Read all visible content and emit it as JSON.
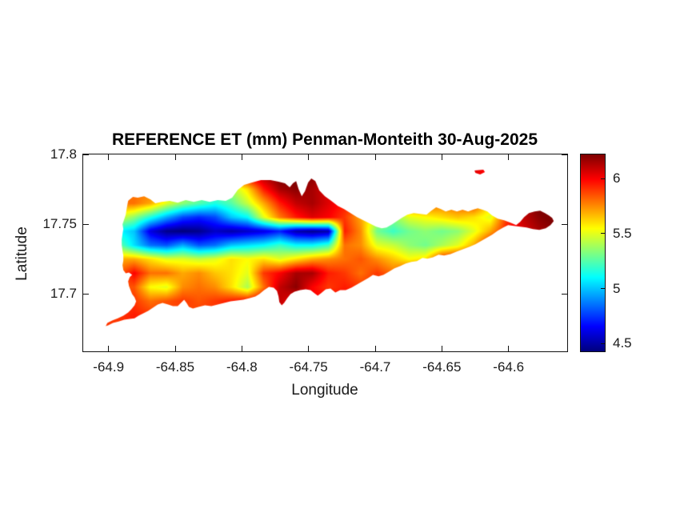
{
  "figure": {
    "background": "#ffffff"
  },
  "chart_data": {
    "type": "heatmap",
    "title": "REFERENCE ET (mm) Penman-Monteith 30-Aug-2025",
    "xlabel": "Longitude",
    "ylabel": "Latitude",
    "xlim": [
      -64.919,
      -64.556
    ],
    "ylim": [
      17.659,
      17.8
    ],
    "xticks": [
      -64.9,
      -64.85,
      -64.8,
      -64.75,
      -64.7,
      -64.65,
      -64.6
    ],
    "xtick_labels": [
      "-64.9",
      "-64.85",
      "-64.8",
      "-64.75",
      "-64.7",
      "-64.65",
      "-64.6"
    ],
    "yticks": [
      17.7,
      17.75,
      17.8
    ],
    "ytick_labels": [
      "17.7",
      "17.75",
      "17.8"
    ],
    "colormap": "jet",
    "color_limits": [
      4.43,
      6.22
    ],
    "colorbar_ticks": [
      4.5,
      5,
      5.5,
      6
    ],
    "colorbar_tick_labels": [
      "4.5",
      "5",
      "5.5",
      "6"
    ],
    "grid": {
      "lon_start": -64.905,
      "lon_step": 0.01214,
      "ncols": 29,
      "lat_start": 17.795,
      "lat_step": -0.01,
      "nrows": 13,
      "values": [
        [
          5.8,
          5.8,
          5.8,
          5.85,
          5.85,
          5.9,
          5.9,
          5.9,
          5.95,
          6.0,
          6.15,
          6.2,
          6.25,
          6.2,
          6.15,
          6.1,
          6.05,
          6.0,
          6.0,
          6.0,
          5.95,
          6.0,
          6.0,
          6.05,
          6.0,
          6.0,
          6.1,
          6.2,
          6.25
        ],
        [
          5.8,
          5.8,
          5.8,
          5.85,
          5.85,
          5.85,
          5.9,
          5.9,
          5.95,
          6.05,
          6.15,
          6.25,
          6.25,
          6.2,
          6.15,
          6.05,
          6.0,
          5.95,
          5.95,
          6.0,
          5.95,
          5.95,
          6.0,
          6.05,
          5.95,
          6.0,
          6.1,
          6.2,
          6.3
        ],
        [
          5.8,
          5.8,
          5.8,
          5.8,
          5.6,
          5.45,
          5.35,
          5.3,
          5.4,
          5.6,
          5.95,
          6.15,
          6.2,
          6.15,
          6.05,
          6.0,
          5.95,
          5.9,
          5.9,
          5.95,
          5.9,
          5.9,
          5.95,
          5.95,
          5.85,
          5.95,
          6.1,
          6.2,
          6.3
        ],
        [
          5.8,
          5.8,
          5.8,
          5.7,
          5.5,
          5.35,
          5.25,
          5.15,
          5.25,
          5.45,
          5.7,
          5.95,
          6.1,
          6.15,
          6.05,
          5.95,
          5.85,
          5.8,
          5.8,
          5.85,
          5.85,
          5.8,
          5.85,
          5.9,
          5.6,
          5.9,
          6.1,
          6.25,
          6.3
        ],
        [
          5.6,
          5.5,
          5.35,
          5.15,
          4.95,
          4.78,
          4.72,
          4.78,
          5.0,
          5.1,
          5.5,
          5.78,
          5.95,
          6.05,
          6.0,
          5.9,
          5.7,
          5.45,
          5.35,
          5.5,
          5.55,
          5.6,
          5.65,
          5.6,
          5.5,
          5.9,
          6.1,
          6.2,
          6.25
        ],
        [
          5.2,
          5.1,
          5.0,
          4.6,
          4.45,
          4.42,
          4.45,
          4.55,
          4.5,
          4.55,
          4.6,
          4.7,
          4.5,
          4.45,
          4.5,
          5.95,
          5.75,
          5.3,
          5.2,
          5.3,
          5.35,
          5.3,
          5.35,
          5.5,
          5.7,
          5.95,
          6.05,
          6.15,
          6.2
        ],
        [
          5.5,
          5.3,
          5.05,
          4.85,
          4.8,
          4.95,
          4.8,
          4.85,
          5.0,
          5.05,
          5.1,
          5.2,
          5.1,
          5.1,
          5.2,
          5.8,
          5.75,
          5.5,
          5.45,
          5.35,
          5.3,
          5.4,
          5.5,
          5.7,
          6.0,
          6.0,
          6.15,
          6.2,
          6.2
        ],
        [
          5.7,
          5.7,
          5.7,
          5.6,
          5.5,
          5.5,
          5.45,
          5.5,
          5.6,
          5.55,
          5.6,
          5.5,
          5.6,
          5.7,
          5.75,
          5.8,
          5.85,
          5.75,
          5.65,
          5.55,
          5.6,
          5.95,
          6.0,
          6.05,
          6.0,
          6.1,
          6.1,
          6.1,
          6.1
        ],
        [
          5.8,
          5.8,
          6.0,
          5.8,
          5.8,
          5.7,
          5.75,
          5.65,
          5.6,
          5.5,
          5.9,
          6.0,
          6.15,
          6.15,
          5.95,
          5.9,
          5.8,
          5.9,
          5.8,
          5.95,
          6.0,
          6.0,
          6.0,
          6.0,
          6.0,
          6.0,
          6.0,
          6.0,
          6.0
        ],
        [
          5.85,
          5.85,
          5.85,
          5.55,
          5.5,
          5.75,
          5.8,
          5.75,
          5.6,
          5.4,
          5.8,
          6.1,
          6.2,
          6.0,
          5.9,
          5.95,
          5.9,
          5.9,
          5.9,
          5.9,
          5.9,
          5.9,
          5.9,
          5.9,
          5.9,
          5.9,
          5.9,
          5.9,
          5.9
        ],
        [
          5.9,
          5.9,
          5.9,
          5.8,
          5.85,
          5.9,
          5.85,
          5.9,
          5.95,
          6.0,
          6.05,
          6.1,
          6.0,
          6.0,
          6.0,
          6.0,
          6.0,
          6.0,
          6.0,
          6.0,
          6.0,
          6.0,
          6.0,
          6.0,
          6.0,
          6.0,
          6.0,
          6.0,
          6.0
        ],
        [
          5.9,
          5.9,
          5.95,
          5.9,
          5.9,
          5.85,
          5.9,
          5.9,
          5.9,
          5.95,
          6.0,
          6.05,
          6.0,
          6.0,
          6.0,
          6.0,
          6.0,
          6.0,
          6.0,
          6.0,
          6.0,
          6.0,
          6.0,
          6.0,
          6.0,
          6.0,
          6.0,
          6.0,
          6.0
        ],
        [
          5.9,
          5.9,
          5.95,
          5.9,
          5.9,
          5.85,
          5.9,
          5.9,
          5.9,
          5.95,
          6.0,
          6.0,
          6.0,
          6.0,
          6.0,
          6.0,
          6.0,
          6.0,
          6.0,
          6.0,
          6.0,
          6.0,
          6.0,
          6.0,
          6.0,
          6.0,
          6.0,
          6.0,
          6.0
        ]
      ]
    },
    "island_outline": [
      [
        -64.8847,
        17.7673
      ],
      [
        -64.8817,
        17.7696
      ],
      [
        -64.8781,
        17.769
      ],
      [
        -64.8733,
        17.7701
      ],
      [
        -64.8685,
        17.7678
      ],
      [
        -64.8649,
        17.765
      ],
      [
        -64.8601,
        17.7661
      ],
      [
        -64.8541,
        17.7667
      ],
      [
        -64.8481,
        17.7655
      ],
      [
        -64.8421,
        17.7673
      ],
      [
        -64.8361,
        17.7661
      ],
      [
        -64.8301,
        17.7673
      ],
      [
        -64.8241,
        17.7661
      ],
      [
        -64.8181,
        17.7673
      ],
      [
        -64.8121,
        17.7667
      ],
      [
        -64.8073,
        17.769
      ],
      [
        -64.8031,
        17.7747
      ],
      [
        -64.7983,
        17.7782
      ],
      [
        -64.7923,
        17.7799
      ],
      [
        -64.7857,
        17.7816
      ],
      [
        -64.7785,
        17.7816
      ],
      [
        -64.7725,
        17.7805
      ],
      [
        -64.7677,
        17.7793
      ],
      [
        -64.7641,
        17.7765
      ],
      [
        -64.7617,
        17.7793
      ],
      [
        -64.7593,
        17.781
      ],
      [
        -64.7575,
        17.7753
      ],
      [
        -64.7551,
        17.7701
      ],
      [
        -64.7527,
        17.7736
      ],
      [
        -64.7503,
        17.7799
      ],
      [
        -64.7479,
        17.7828
      ],
      [
        -64.7449,
        17.781
      ],
      [
        -64.7419,
        17.7742
      ],
      [
        -64.7377,
        17.7701
      ],
      [
        -64.7329,
        17.7667
      ],
      [
        -64.7281,
        17.7632
      ],
      [
        -64.7233,
        17.7609
      ],
      [
        -64.7185,
        17.758
      ],
      [
        -64.7137,
        17.7552
      ],
      [
        -64.7089,
        17.7529
      ],
      [
        -64.7041,
        17.7506
      ],
      [
        -64.6993,
        17.7483
      ],
      [
        -64.6951,
        17.7471
      ],
      [
        -64.6915,
        17.7477
      ],
      [
        -64.6873,
        17.75
      ],
      [
        -64.6837,
        17.7523
      ],
      [
        -64.6801,
        17.7546
      ],
      [
        -64.6759,
        17.7569
      ],
      [
        -64.6711,
        17.758
      ],
      [
        -64.6663,
        17.7575
      ],
      [
        -64.6615,
        17.7569
      ],
      [
        -64.6579,
        17.7598
      ],
      [
        -64.6543,
        17.7621
      ],
      [
        -64.6507,
        17.7609
      ],
      [
        -64.6471,
        17.7592
      ],
      [
        -64.6429,
        17.7604
      ],
      [
        -64.6387,
        17.7592
      ],
      [
        -64.6345,
        17.7604
      ],
      [
        -64.6303,
        17.7592
      ],
      [
        -64.6267,
        17.7604
      ],
      [
        -64.6231,
        17.7615
      ],
      [
        -64.6195,
        17.7604
      ],
      [
        -64.6159,
        17.7592
      ],
      [
        -64.6123,
        17.7563
      ],
      [
        -64.6081,
        17.754
      ],
      [
        -64.6033,
        17.7529
      ],
      [
        -64.5985,
        17.7512
      ],
      [
        -64.5943,
        17.7494
      ],
      [
        -64.5913,
        17.7517
      ],
      [
        -64.5883,
        17.7552
      ],
      [
        -64.5847,
        17.758
      ],
      [
        -64.5805,
        17.7592
      ],
      [
        -64.5763,
        17.7598
      ],
      [
        -64.5727,
        17.758
      ],
      [
        -64.5697,
        17.7563
      ],
      [
        -64.5673,
        17.7546
      ],
      [
        -64.5661,
        17.7523
      ],
      [
        -64.5685,
        17.7494
      ],
      [
        -64.5721,
        17.7471
      ],
      [
        -64.5769,
        17.746
      ],
      [
        -64.5817,
        17.7466
      ],
      [
        -64.5865,
        17.7477
      ],
      [
        -64.5913,
        17.7483
      ],
      [
        -64.5961,
        17.7489
      ],
      [
        -64.6003,
        17.7494
      ],
      [
        -64.6039,
        17.7477
      ],
      [
        -64.6081,
        17.7454
      ],
      [
        -64.6123,
        17.7425
      ],
      [
        -64.6165,
        17.7402
      ],
      [
        -64.6207,
        17.7379
      ],
      [
        -64.6249,
        17.7356
      ],
      [
        -64.6291,
        17.7339
      ],
      [
        -64.6339,
        17.7322
      ],
      [
        -64.6387,
        17.7305
      ],
      [
        -64.6435,
        17.7287
      ],
      [
        -64.6483,
        17.7276
      ],
      [
        -64.6525,
        17.7282
      ],
      [
        -64.6567,
        17.7264
      ],
      [
        -64.6609,
        17.7253
      ],
      [
        -64.6645,
        17.7259
      ],
      [
        -64.6687,
        17.7236
      ],
      [
        -64.6729,
        17.723
      ],
      [
        -64.6771,
        17.7219
      ],
      [
        -64.6813,
        17.7201
      ],
      [
        -64.6855,
        17.7184
      ],
      [
        -64.6897,
        17.7161
      ],
      [
        -64.6939,
        17.7138
      ],
      [
        -64.6975,
        17.7127
      ],
      [
        -64.7017,
        17.7138
      ],
      [
        -64.7053,
        17.7115
      ],
      [
        -64.7095,
        17.7092
      ],
      [
        -64.7137,
        17.7069
      ],
      [
        -64.7179,
        17.7046
      ],
      [
        -64.7221,
        17.7029
      ],
      [
        -64.7263,
        17.7029
      ],
      [
        -64.7299,
        17.7011
      ],
      [
        -64.7335,
        17.704
      ],
      [
        -64.7371,
        17.7034
      ],
      [
        -64.7407,
        17.7006
      ],
      [
        -64.7431,
        17.6988
      ],
      [
        -64.7455,
        17.7006
      ],
      [
        -64.7485,
        17.7029
      ],
      [
        -64.7521,
        17.7034
      ],
      [
        -64.7563,
        17.7029
      ],
      [
        -64.7605,
        17.7017
      ],
      [
        -64.7635,
        17.7
      ],
      [
        -64.7659,
        17.6971
      ],
      [
        -64.7683,
        17.6937
      ],
      [
        -64.7701,
        17.692
      ],
      [
        -64.7719,
        17.6943
      ],
      [
        -64.7725,
        17.6983
      ],
      [
        -64.7737,
        17.7023
      ],
      [
        -64.7761,
        17.7046
      ],
      [
        -64.7797,
        17.7052
      ],
      [
        -64.7833,
        17.7029
      ],
      [
        -64.7869,
        17.7
      ],
      [
        -64.7899,
        17.6983
      ],
      [
        -64.7941,
        17.6971
      ],
      [
        -64.7989,
        17.696
      ],
      [
        -64.8037,
        17.6954
      ],
      [
        -64.8085,
        17.6948
      ],
      [
        -64.8133,
        17.6937
      ],
      [
        -64.8181,
        17.6925
      ],
      [
        -64.8229,
        17.6914
      ],
      [
        -64.8277,
        17.692
      ],
      [
        -64.8325,
        17.6908
      ],
      [
        -64.8367,
        17.6897
      ],
      [
        -64.8397,
        17.6908
      ],
      [
        -64.8415,
        17.6937
      ],
      [
        -64.8433,
        17.696
      ],
      [
        -64.8457,
        17.6937
      ],
      [
        -64.8481,
        17.6914
      ],
      [
        -64.8517,
        17.6914
      ],
      [
        -64.8553,
        17.6925
      ],
      [
        -64.8595,
        17.6937
      ],
      [
        -64.8631,
        17.6925
      ],
      [
        -64.8667,
        17.6902
      ],
      [
        -64.8703,
        17.6879
      ],
      [
        -64.8739,
        17.6862
      ],
      [
        -64.8775,
        17.6845
      ],
      [
        -64.8805,
        17.6827
      ],
      [
        -64.8841,
        17.6822
      ],
      [
        -64.8883,
        17.6816
      ],
      [
        -64.8925,
        17.6804
      ],
      [
        -64.8967,
        17.6793
      ],
      [
        -64.9003,
        17.6776
      ],
      [
        -64.9021,
        17.677
      ],
      [
        -64.9009,
        17.6793
      ],
      [
        -64.8973,
        17.681
      ],
      [
        -64.8931,
        17.6827
      ],
      [
        -64.8889,
        17.6845
      ],
      [
        -64.8853,
        17.6868
      ],
      [
        -64.8829,
        17.6891
      ],
      [
        -64.8805,
        17.692
      ],
      [
        -64.8793,
        17.6948
      ],
      [
        -64.8805,
        17.6977
      ],
      [
        -64.8823,
        17.7
      ],
      [
        -64.8835,
        17.7029
      ],
      [
        -64.8847,
        17.7058
      ],
      [
        -64.8853,
        17.7092
      ],
      [
        -64.8841,
        17.7121
      ],
      [
        -64.8823,
        17.7138
      ],
      [
        -64.8847,
        17.7155
      ],
      [
        -64.8871,
        17.7149
      ],
      [
        -64.8889,
        17.7172
      ],
      [
        -64.8895,
        17.7207
      ],
      [
        -64.8889,
        17.7241
      ],
      [
        -64.8889,
        17.7276
      ],
      [
        -64.8895,
        17.731
      ],
      [
        -64.8901,
        17.7351
      ],
      [
        -64.8901,
        17.7391
      ],
      [
        -64.8895,
        17.7431
      ],
      [
        -64.8889,
        17.7466
      ],
      [
        -64.8895,
        17.75
      ],
      [
        -64.8883,
        17.7535
      ],
      [
        -64.8871,
        17.7569
      ],
      [
        -64.8865,
        17.7604
      ],
      [
        -64.8859,
        17.7638
      ],
      [
        -64.8853,
        17.7667
      ]
    ],
    "islands_secondary": [
      [
        [
          -64.6255,
          17.7885
        ],
        [
          -64.6189,
          17.7891
        ],
        [
          -64.6177,
          17.7874
        ],
        [
          -64.6213,
          17.7857
        ],
        [
          -64.6249,
          17.7868
        ]
      ]
    ]
  }
}
